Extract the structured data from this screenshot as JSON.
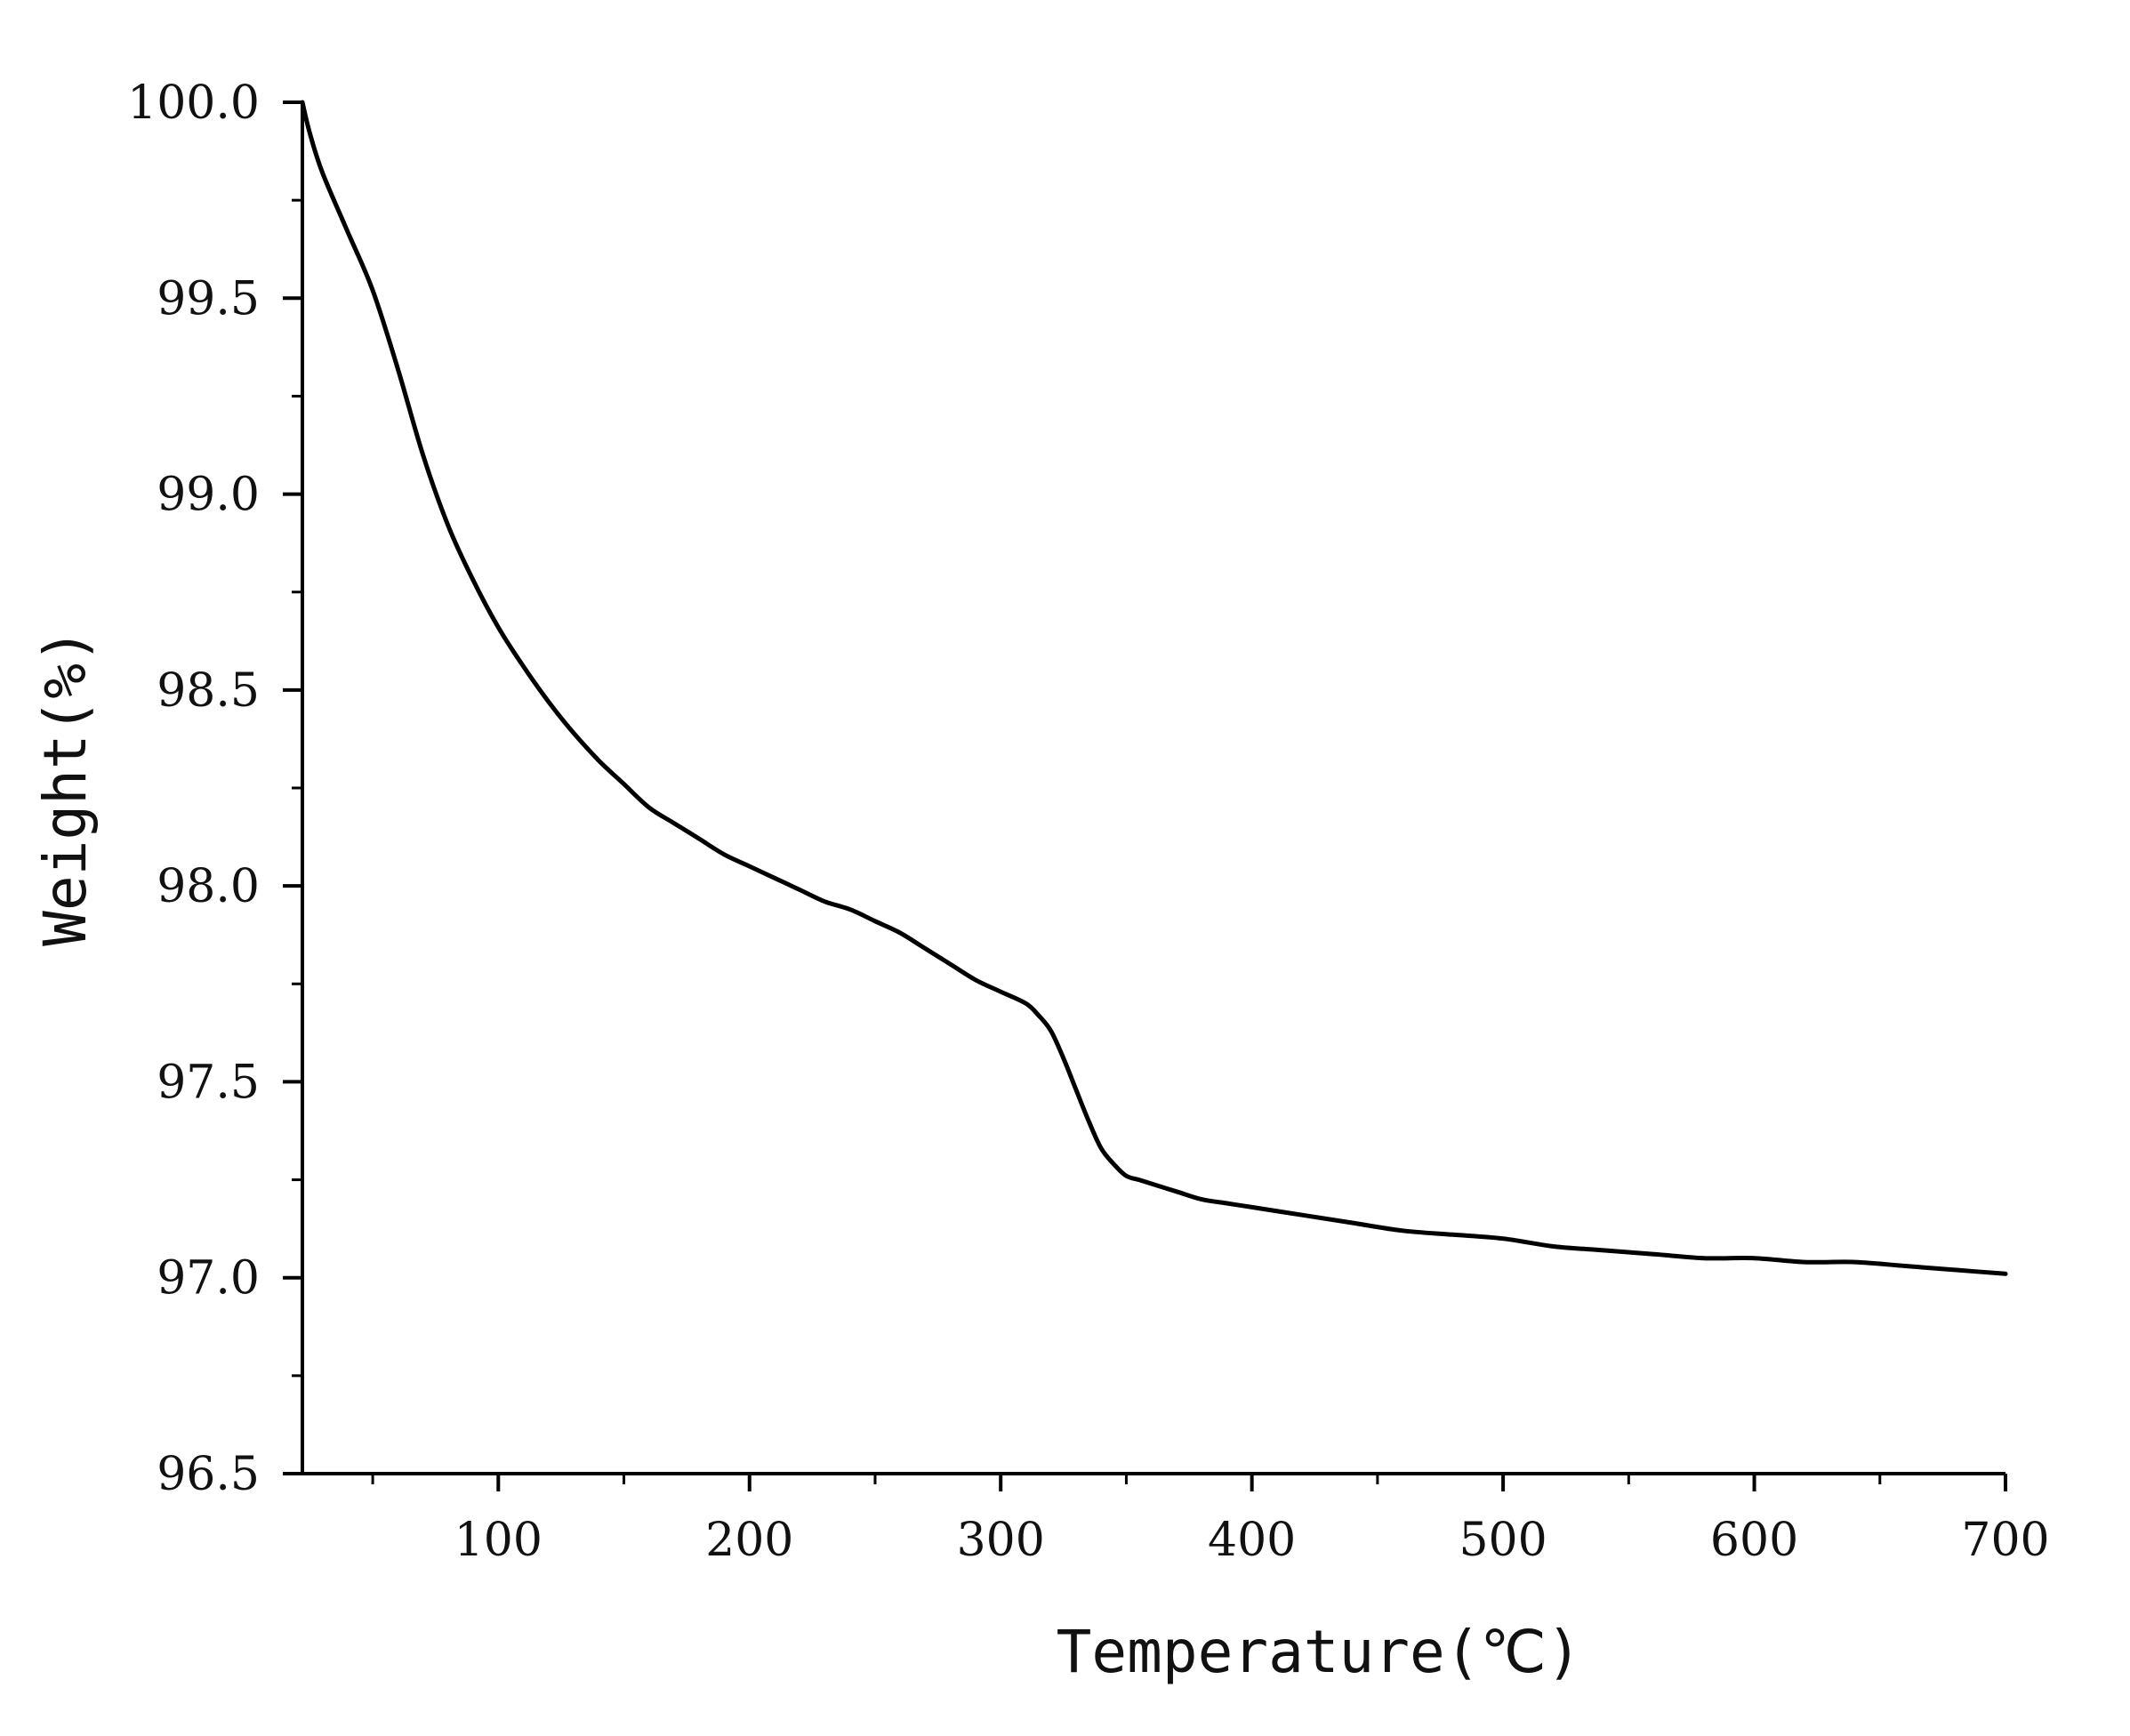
{
  "chart_data": {
    "type": "line",
    "title": "",
    "xlabel": "Temperature(℃)",
    "ylabel": "Weight(%)",
    "xlim": [
      22,
      700
    ],
    "ylim": [
      96.5,
      100.0
    ],
    "x_ticks": [
      100,
      200,
      300,
      400,
      500,
      600,
      700
    ],
    "x_tick_labels": [
      "100",
      "200",
      "300",
      "400",
      "500",
      "600",
      "700"
    ],
    "y_ticks": [
      96.5,
      97.0,
      97.5,
      98.0,
      98.5,
      99.0,
      99.5,
      100.0
    ],
    "y_tick_labels": [
      "96.5",
      "97.0",
      "97.5",
      "98.0",
      "98.5",
      "99.0",
      "99.5",
      "100.0"
    ],
    "grid": false,
    "legend": "none",
    "colors": {
      "line": "#000000",
      "axis": "#000000"
    },
    "series": [
      {
        "x": [
          22,
          25,
          30,
          40,
          50,
          60,
          70,
          80,
          90,
          100,
          110,
          120,
          130,
          140,
          150,
          160,
          170,
          180,
          190,
          200,
          210,
          220,
          230,
          240,
          250,
          260,
          270,
          280,
          290,
          300,
          310,
          315,
          320,
          325,
          330,
          335,
          340,
          345,
          350,
          355,
          360,
          370,
          380,
          390,
          400,
          420,
          440,
          460,
          480,
          500,
          520,
          540,
          560,
          580,
          600,
          620,
          640,
          660,
          680,
          700
        ],
        "y": [
          100.0,
          99.92,
          99.82,
          99.67,
          99.52,
          99.32,
          99.1,
          98.92,
          98.78,
          98.66,
          98.56,
          98.47,
          98.39,
          98.32,
          98.26,
          98.2,
          98.16,
          98.12,
          98.08,
          98.05,
          98.02,
          97.99,
          97.96,
          97.94,
          97.91,
          97.88,
          97.84,
          97.8,
          97.76,
          97.73,
          97.7,
          97.67,
          97.63,
          97.56,
          97.48,
          97.4,
          97.33,
          97.29,
          97.26,
          97.25,
          97.24,
          97.22,
          97.2,
          97.19,
          97.18,
          97.16,
          97.14,
          97.12,
          97.11,
          97.1,
          97.08,
          97.07,
          97.06,
          97.05,
          97.05,
          97.04,
          97.04,
          97.03,
          97.02,
          97.01
        ]
      }
    ]
  }
}
